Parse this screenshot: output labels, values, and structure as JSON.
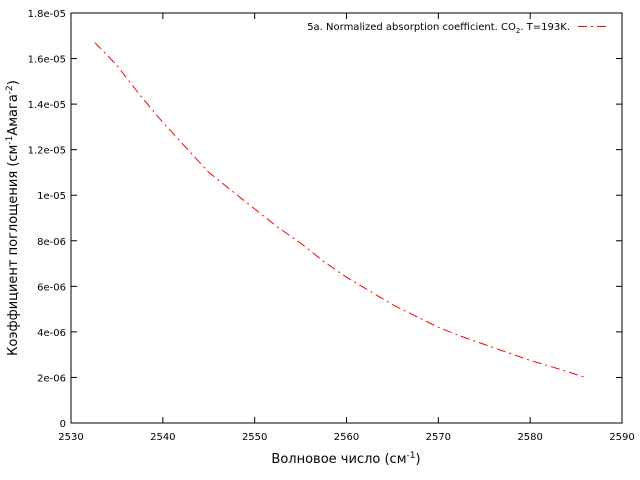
{
  "chart_data": {
    "type": "line",
    "xlabel": {
      "main": "Волновое число (см",
      "sup": "-1",
      "tail": ")"
    },
    "ylabel": {
      "main": "Коэффициент поглощения (см",
      "sup1": "-1",
      "mid": "Амага",
      "sup2": "-2",
      "tail": ")"
    },
    "xlim": [
      2530,
      2590
    ],
    "ylim": [
      0,
      1.8e-05
    ],
    "xticks": [
      2530,
      2540,
      2550,
      2560,
      2570,
      2580,
      2590
    ],
    "xtick_labels": [
      "2530",
      "2540",
      "2550",
      "2560",
      "2570",
      "2580",
      "2590"
    ],
    "yticks": [
      0,
      2e-06,
      4e-06,
      6e-06,
      8e-06,
      1e-05,
      1.2e-05,
      1.4e-05,
      1.6e-05,
      1.8e-05
    ],
    "ytick_labels": [
      "0",
      "2e-06",
      "4e-06",
      "6e-06",
      "8e-06",
      "1e-05",
      "1.2e-05",
      "1.4e-05",
      "1.6e-05",
      "1.8e-05"
    ],
    "grid": false,
    "legend_position": "top-right",
    "series": [
      {
        "name": "5a. Normalized absorption coefficient. CO2. T=193K.",
        "legend_parts": {
          "a": "5a. Normalized absorption coefficient. CO",
          "sub": "2",
          "b": ". T=193K."
        },
        "color": "#ff0000",
        "line_style": "dash-dot",
        "x": [
          2532.6,
          2535,
          2537.5,
          2540,
          2542.5,
          2545,
          2547.5,
          2550,
          2552.5,
          2555,
          2557.5,
          2560,
          2562.5,
          2565,
          2567.5,
          2570,
          2572.5,
          2575,
          2577.5,
          2580,
          2582.5,
          2586
        ],
        "y": [
          1.67e-05,
          1.57e-05,
          1.44e-05,
          1.32e-05,
          1.21e-05,
          1.1e-05,
          1.02e-05,
          9.4e-06,
          8.6e-06,
          7.9e-06,
          7.1e-06,
          6.4e-06,
          5.8e-06,
          5.2e-06,
          4.7e-06,
          4.2e-06,
          3.8e-06,
          3.45e-06,
          3.1e-06,
          2.75e-06,
          2.45e-06,
          2e-06
        ]
      }
    ]
  }
}
